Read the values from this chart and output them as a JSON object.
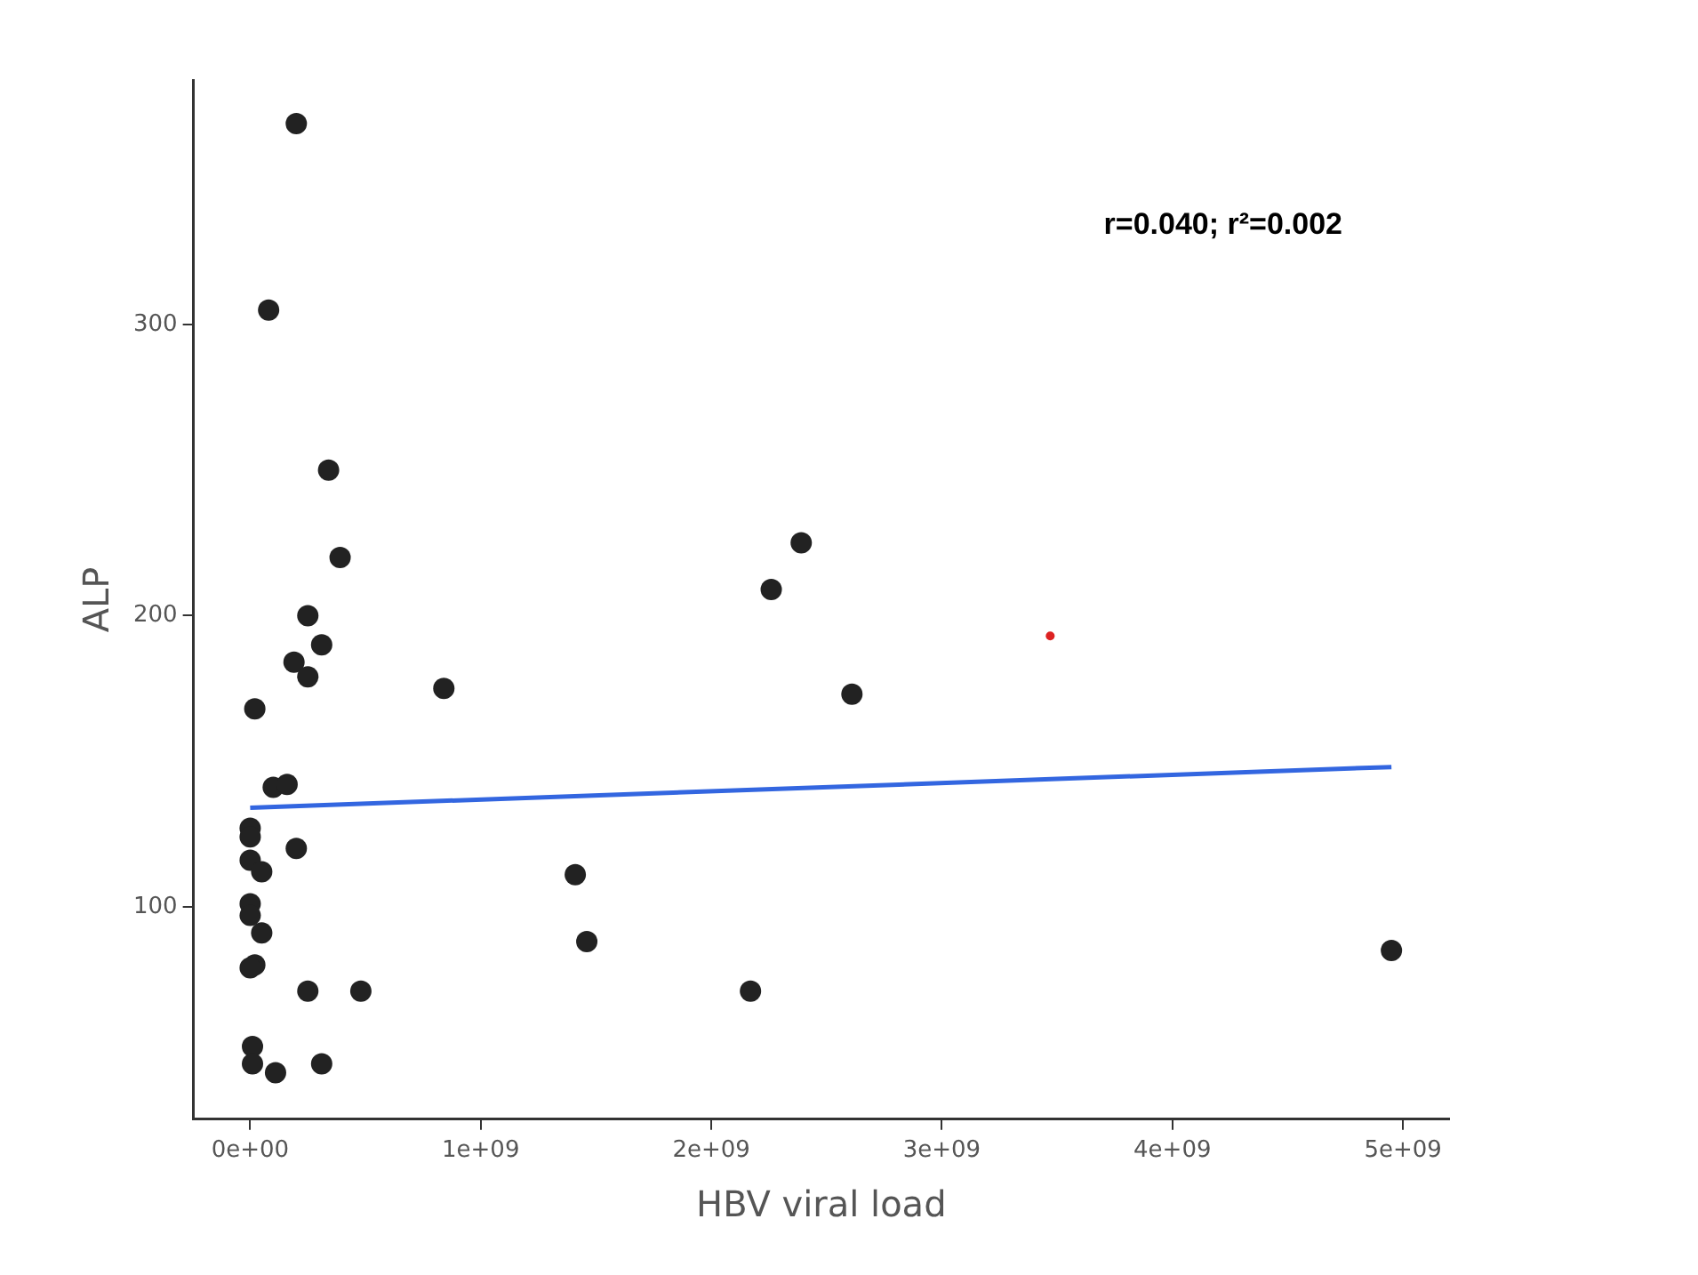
{
  "chart_data": {
    "type": "scatter",
    "xlabel": "HBV viral load",
    "ylabel": "ALP",
    "annotations": [
      "r=0.040; r²=0.002"
    ],
    "xlim": [
      -246000000,
      5200000000
    ],
    "ylim": [
      27,
      384
    ],
    "xticks": [
      {
        "value": 0,
        "label": "0e+00"
      },
      {
        "value": 1000000000,
        "label": "1e+09"
      },
      {
        "value": 2000000000,
        "label": "2e+09"
      },
      {
        "value": 3000000000,
        "label": "3e+09"
      },
      {
        "value": 4000000000,
        "label": "4e+09"
      },
      {
        "value": 5000000000,
        "label": "5e+09"
      }
    ],
    "yticks": [
      100,
      200,
      300
    ],
    "marker": "circle",
    "grid": false,
    "legend": false,
    "series": [
      {
        "color": "#222222",
        "x": [
          200000000,
          80000000,
          340000000,
          390000000,
          250000000,
          310000000,
          190000000,
          250000000,
          20000000,
          100000000,
          160000000,
          0,
          0,
          200000000,
          0,
          50000000,
          0,
          0,
          50000000,
          20000000,
          0,
          250000000,
          480000000,
          10000000,
          10000000,
          110000000,
          310000000,
          840000000,
          2390000000,
          2260000000,
          2610000000,
          1410000000,
          1460000000,
          2170000000,
          4950000000
        ],
        "values": [
          369,
          305,
          250,
          220,
          200,
          190,
          184,
          179,
          168,
          141,
          142,
          127,
          124,
          120,
          116,
          112,
          101,
          97,
          91,
          80,
          79,
          71,
          71,
          52,
          46,
          43,
          46,
          175,
          225,
          209,
          173,
          111,
          88,
          71,
          85
        ]
      },
      {
        "color": "#dd2222",
        "x": [
          3470000000
        ],
        "values": [
          193
        ]
      },
      {
        "type": "line",
        "marker": "none",
        "color": "#3366e0",
        "x": [
          0,
          4950000000
        ],
        "values": [
          134,
          148
        ]
      }
    ]
  }
}
